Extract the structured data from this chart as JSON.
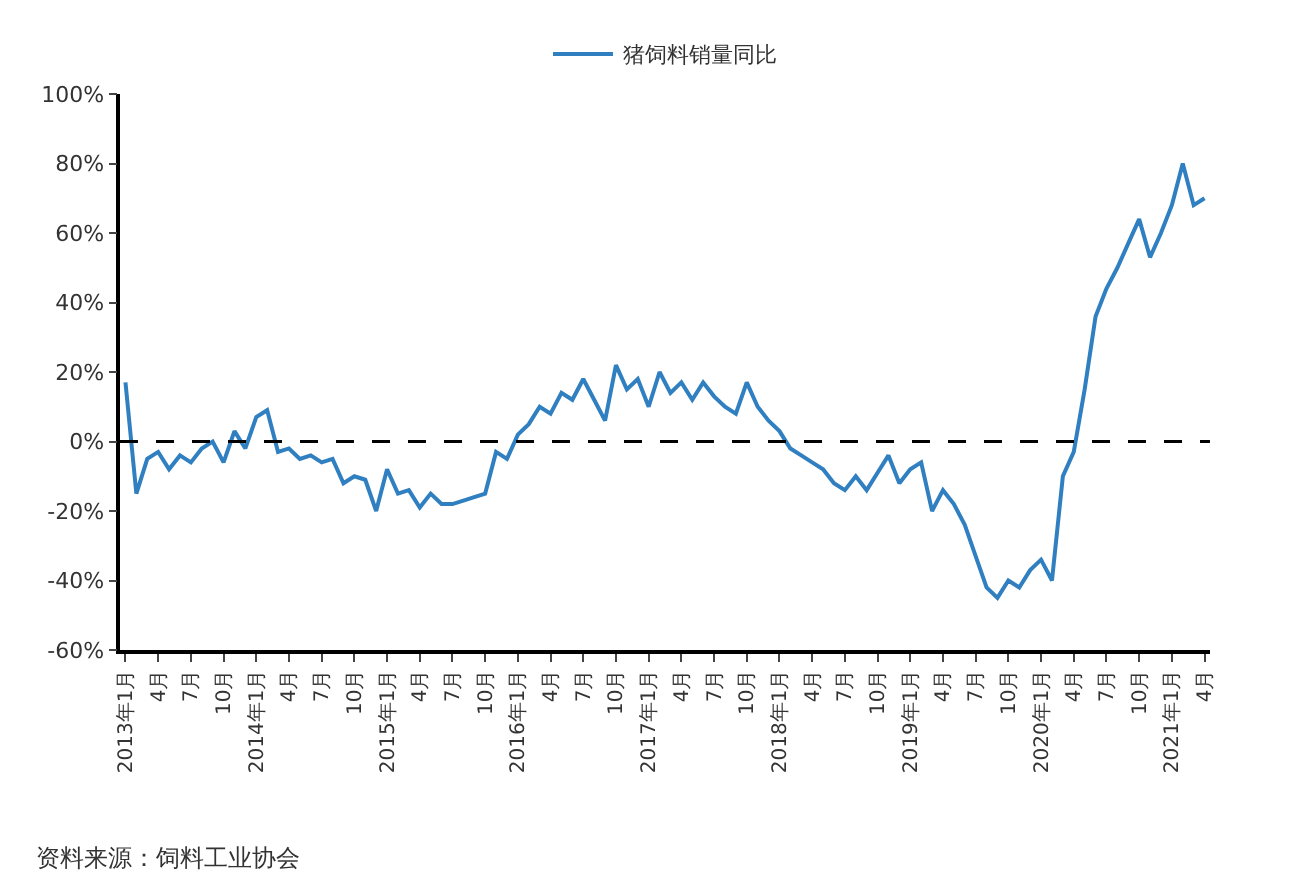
{
  "chart_data": {
    "type": "line",
    "categories": [
      "2013年1月",
      null,
      null,
      "4月",
      null,
      null,
      "7月",
      null,
      null,
      "10月",
      null,
      null,
      "2014年1月",
      null,
      null,
      "4月",
      null,
      null,
      "7月",
      null,
      null,
      "10月",
      null,
      null,
      "2015年1月",
      null,
      null,
      "4月",
      null,
      null,
      "7月",
      null,
      null,
      "10月",
      null,
      null,
      "2016年1月",
      null,
      null,
      "4月",
      null,
      null,
      "7月",
      null,
      null,
      "10月",
      null,
      null,
      "2017年1月",
      null,
      null,
      "4月",
      null,
      null,
      "7月",
      null,
      null,
      "10月",
      null,
      null,
      "2018年1月",
      null,
      null,
      "4月",
      null,
      null,
      "7月",
      null,
      null,
      "10月",
      null,
      null,
      "2019年1月",
      null,
      null,
      "4月",
      null,
      null,
      "7月",
      null,
      null,
      "10月",
      null,
      null,
      "2020年1月",
      null,
      null,
      "4月",
      null,
      null,
      "7月",
      null,
      null,
      "10月",
      null,
      null,
      "2021年1月",
      null,
      null,
      "4月"
    ],
    "series": [
      {
        "name": "猪饲料销量同比",
        "color": "#2f7fc1",
        "values": [
          17,
          -15,
          -5,
          -3,
          -8,
          -4,
          -6,
          -2,
          0,
          -6,
          3,
          -2,
          7,
          9,
          -3,
          -2,
          -5,
          -4,
          -6,
          -5,
          -12,
          -10,
          -11,
          -20,
          -8,
          -15,
          -14,
          -19,
          -15,
          -18,
          -18,
          -17,
          -16,
          -15,
          -3,
          -5,
          2,
          5,
          10,
          8,
          14,
          12,
          18,
          12,
          6,
          22,
          15,
          18,
          10,
          20,
          14,
          17,
          12,
          17,
          13,
          10,
          8,
          17,
          10,
          6,
          3,
          -2,
          -4,
          -6,
          -8,
          -12,
          -14,
          -10,
          -14,
          -9,
          -4,
          -12,
          -8,
          -6,
          -20,
          -14,
          -18,
          -24,
          -33,
          -42,
          -45,
          -40,
          -42,
          -37,
          -34,
          -40,
          -10,
          -3,
          15,
          36,
          44,
          50,
          57,
          64,
          53,
          60,
          68,
          80,
          68,
          70
        ]
      }
    ],
    "ylim": [
      -60,
      100
    ],
    "yticks": [
      {
        "value": -60,
        "label": "-60%"
      },
      {
        "value": -40,
        "label": "-40%"
      },
      {
        "value": -20,
        "label": "-20%"
      },
      {
        "value": 0,
        "label": "0%"
      },
      {
        "value": 20,
        "label": "20%"
      },
      {
        "value": 40,
        "label": "40%"
      },
      {
        "value": 60,
        "label": "60%"
      },
      {
        "value": 80,
        "label": "80%"
      },
      {
        "value": 100,
        "label": "100%"
      }
    ],
    "ref_lines": [
      {
        "axis": "y",
        "value": 0,
        "color": "#000000",
        "line_style": "dashed"
      }
    ],
    "legend": "top",
    "marker": "none",
    "line_style": "solid",
    "annotations": [
      "资料来源：饲料工业协会"
    ]
  }
}
